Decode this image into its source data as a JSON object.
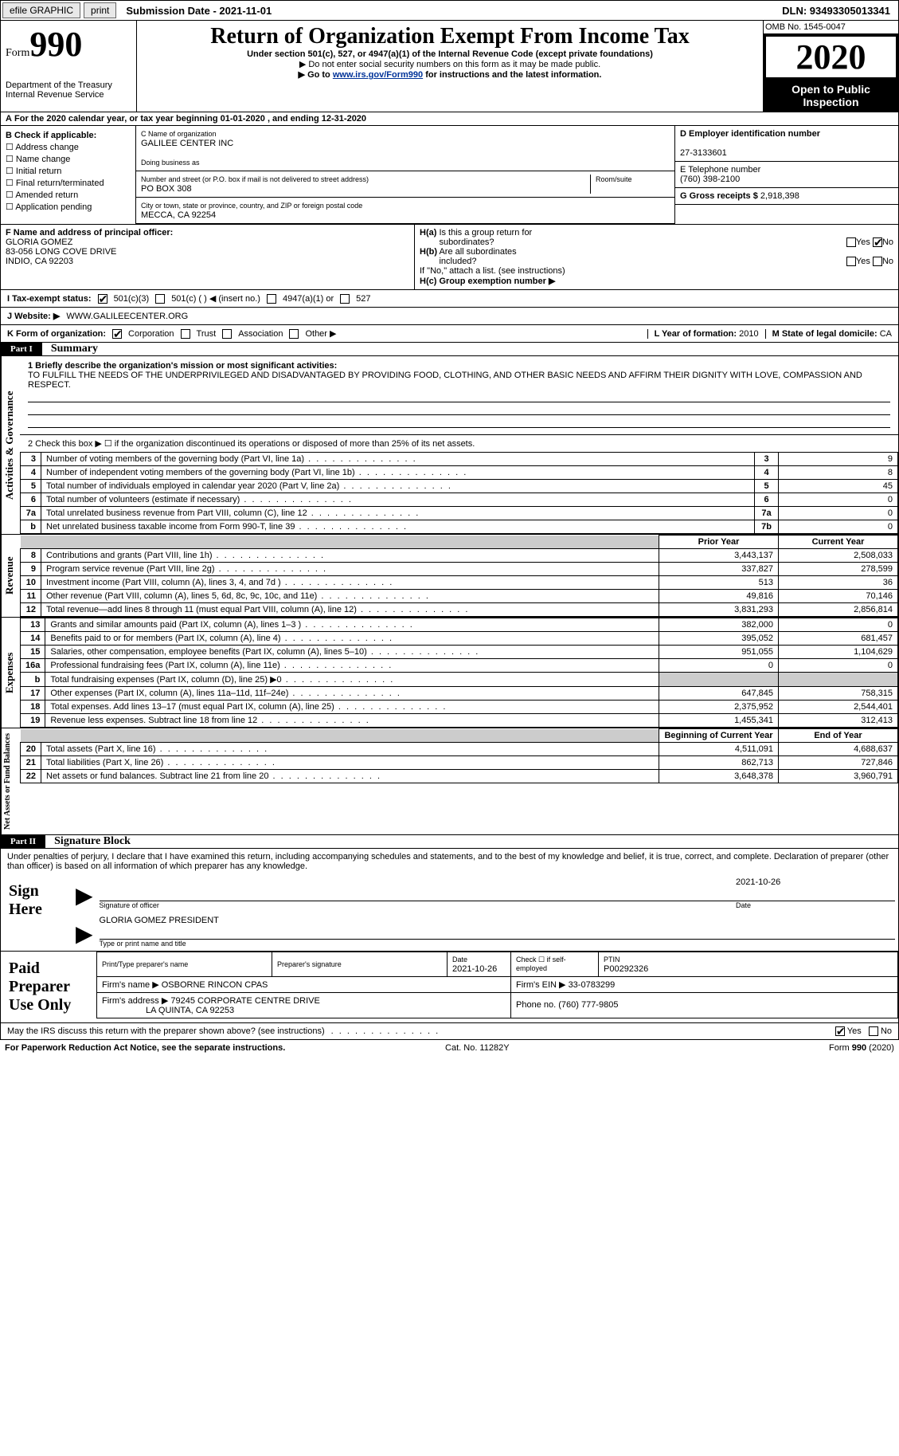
{
  "topbar": {
    "efile": "efile GRAPHIC",
    "print": "print",
    "submission": "Submission Date - 2021-11-01",
    "dln": "DLN: 93493305013341"
  },
  "header": {
    "form_prefix": "Form",
    "form_number": "990",
    "dept": "Department of the Treasury\nInternal Revenue Service",
    "title": "Return of Organization Exempt From Income Tax",
    "subtitle": "Under section 501(c), 527, or 4947(a)(1) of the Internal Revenue Code (except private foundations)",
    "note1": "▶ Do not enter social security numbers on this form as it may be made public.",
    "note2_pre": "▶ Go to ",
    "note2_link": "www.irs.gov/Form990",
    "note2_post": " for instructions and the latest information.",
    "omb": "OMB No. 1545-0047",
    "year": "2020",
    "inspection": "Open to Public Inspection"
  },
  "period": "For the 2020 calendar year, or tax year beginning 01-01-2020   , and ending 12-31-2020",
  "b": {
    "label": "B Check if applicable:",
    "items": [
      "Address change",
      "Name change",
      "Initial return",
      "Final return/terminated",
      "Amended return",
      "Application pending"
    ]
  },
  "c": {
    "name_label": "C Name of organization",
    "name": "GALILEE CENTER INC",
    "dba_label": "Doing business as",
    "addr_label": "Number and street (or P.O. box if mail is not delivered to street address)",
    "room_label": "Room/suite",
    "addr": "PO BOX 308",
    "city_label": "City or town, state or province, country, and ZIP or foreign postal code",
    "city": "MECCA, CA  92254"
  },
  "d": {
    "label": "D Employer identification number",
    "value": "27-3133601"
  },
  "e": {
    "label": "E Telephone number",
    "value": "(760) 398-2100"
  },
  "g": {
    "label": "G Gross receipts $",
    "value": "2,918,398"
  },
  "f": {
    "label": "F  Name and address of principal officer:",
    "name": "GLORIA GOMEZ",
    "addr1": "83-056 LONG COVE DRIVE",
    "addr2": "INDIO, CA  92203"
  },
  "h": {
    "a_label": "H(a)  Is this a group return for subordinates?",
    "a_yes": "Yes",
    "a_no": "No",
    "b_label": "H(b)  Are all subordinates included?",
    "b_note": "If \"No,\" attach a list. (see instructions)",
    "c_label": "H(c)  Group exemption number ▶"
  },
  "i": {
    "label": "I   Tax-exempt status:",
    "opts": [
      "501(c)(3)",
      "501(c) (  ) ◀ (insert no.)",
      "4947(a)(1) or",
      "527"
    ]
  },
  "j": {
    "label": "J   Website: ▶",
    "value": "WWW.GALILEECENTER.ORG"
  },
  "k": {
    "label": "K Form of organization:",
    "opts": [
      "Corporation",
      "Trust",
      "Association",
      "Other ▶"
    ]
  },
  "l": {
    "label": "L Year of formation:",
    "value": "2010"
  },
  "m": {
    "label": "M State of legal domicile:",
    "value": "CA"
  },
  "part1": {
    "label": "Part I",
    "title": "Summary"
  },
  "mission": {
    "prompt": "1  Briefly describe the organization's mission or most significant activities:",
    "text": "TO FULFILL THE NEEDS OF THE UNDERPRIVILEGED AND DISADVANTAGED BY PROVIDING FOOD, CLOTHING, AND OTHER BASIC NEEDS AND AFFIRM THEIR DIGNITY WITH LOVE, COMPASSION AND RESPECT."
  },
  "line2": "2   Check this box ▶ ☐  if the organization discontinued its operations or disposed of more than 25% of its net assets.",
  "governance_rows": [
    {
      "n": "3",
      "lbl": "Number of voting members of the governing body (Part VI, line 1a)",
      "box": "3",
      "val": "9"
    },
    {
      "n": "4",
      "lbl": "Number of independent voting members of the governing body (Part VI, line 1b)",
      "box": "4",
      "val": "8"
    },
    {
      "n": "5",
      "lbl": "Total number of individuals employed in calendar year 2020 (Part V, line 2a)",
      "box": "5",
      "val": "45"
    },
    {
      "n": "6",
      "lbl": "Total number of volunteers (estimate if necessary)",
      "box": "6",
      "val": "0"
    },
    {
      "n": "7a",
      "lbl": "Total unrelated business revenue from Part VIII, column (C), line 12",
      "box": "7a",
      "val": "0"
    },
    {
      "n": "b",
      "lbl": "Net unrelated business taxable income from Form 990-T, line 39",
      "box": "7b",
      "val": "0"
    }
  ],
  "col_headers": {
    "py": "Prior Year",
    "cy": "Current Year"
  },
  "revenue_rows": [
    {
      "n": "8",
      "lbl": "Contributions and grants (Part VIII, line 1h)",
      "py": "3,443,137",
      "cy": "2,508,033"
    },
    {
      "n": "9",
      "lbl": "Program service revenue (Part VIII, line 2g)",
      "py": "337,827",
      "cy": "278,599"
    },
    {
      "n": "10",
      "lbl": "Investment income (Part VIII, column (A), lines 3, 4, and 7d )",
      "py": "513",
      "cy": "36"
    },
    {
      "n": "11",
      "lbl": "Other revenue (Part VIII, column (A), lines 5, 6d, 8c, 9c, 10c, and 11e)",
      "py": "49,816",
      "cy": "70,146"
    },
    {
      "n": "12",
      "lbl": "Total revenue—add lines 8 through 11 (must equal Part VIII, column (A), line 12)",
      "py": "3,831,293",
      "cy": "2,856,814"
    }
  ],
  "expense_rows": [
    {
      "n": "13",
      "lbl": "Grants and similar amounts paid (Part IX, column (A), lines 1–3 )",
      "py": "382,000",
      "cy": "0"
    },
    {
      "n": "14",
      "lbl": "Benefits paid to or for members (Part IX, column (A), line 4)",
      "py": "395,052",
      "cy": "681,457"
    },
    {
      "n": "15",
      "lbl": "Salaries, other compensation, employee benefits (Part IX, column (A), lines 5–10)",
      "py": "951,055",
      "cy": "1,104,629"
    },
    {
      "n": "16a",
      "lbl": "Professional fundraising fees (Part IX, column (A), line 11e)",
      "py": "0",
      "cy": "0"
    },
    {
      "n": "b",
      "lbl": "Total fundraising expenses (Part IX, column (D), line 25) ▶0",
      "py": "",
      "cy": "",
      "shaded": true
    },
    {
      "n": "17",
      "lbl": "Other expenses (Part IX, column (A), lines 11a–11d, 11f–24e)",
      "py": "647,845",
      "cy": "758,315"
    },
    {
      "n": "18",
      "lbl": "Total expenses. Add lines 13–17 (must equal Part IX, column (A), line 25)",
      "py": "2,375,952",
      "cy": "2,544,401"
    },
    {
      "n": "19",
      "lbl": "Revenue less expenses. Subtract line 18 from line 12",
      "py": "1,455,341",
      "cy": "312,413"
    }
  ],
  "net_headers": {
    "py": "Beginning of Current Year",
    "cy": "End of Year"
  },
  "net_rows": [
    {
      "n": "20",
      "lbl": "Total assets (Part X, line 16)",
      "py": "4,511,091",
      "cy": "4,688,637"
    },
    {
      "n": "21",
      "lbl": "Total liabilities (Part X, line 26)",
      "py": "862,713",
      "cy": "727,846"
    },
    {
      "n": "22",
      "lbl": "Net assets or fund balances. Subtract line 21 from line 20",
      "py": "3,648,378",
      "cy": "3,960,791"
    }
  ],
  "side_labels": {
    "gov": "Activities & Governance",
    "rev": "Revenue",
    "exp": "Expenses",
    "net": "Net Assets or Fund Balances"
  },
  "part2": {
    "label": "Part II",
    "title": "Signature Block"
  },
  "penalties": "Under penalties of perjury, I declare that I have examined this return, including accompanying schedules and statements, and to the best of my knowledge and belief, it is true, correct, and complete. Declaration of preparer (other than officer) is based on all information of which preparer has any knowledge.",
  "sign": {
    "here": "Sign Here",
    "sig_label": "Signature of officer",
    "date": "2021-10-26",
    "date_label": "Date",
    "name": "GLORIA GOMEZ PRESIDENT",
    "name_label": "Type or print name and title"
  },
  "prep": {
    "label": "Paid Preparer Use Only",
    "col1": "Print/Type preparer's name",
    "col2": "Preparer's signature",
    "col3": "Date",
    "date": "2021-10-26",
    "col4_a": "Check ☐ if self-employed",
    "col5": "PTIN",
    "ptin": "P00292326",
    "firm_name_lbl": "Firm's name   ▶",
    "firm_name": "OSBORNE RINCON CPAS",
    "firm_ein_lbl": "Firm's EIN ▶",
    "firm_ein": "33-0783299",
    "firm_addr_lbl": "Firm's address ▶",
    "firm_addr": "79245 CORPORATE CENTRE DRIVE",
    "firm_city": "LA QUINTA, CA  92253",
    "phone_lbl": "Phone no.",
    "phone": "(760) 777-9805"
  },
  "discuss": {
    "q": "May the IRS discuss this return with the preparer shown above? (see instructions)",
    "yes": "Yes",
    "no": "No"
  },
  "footer": {
    "left": "For Paperwork Reduction Act Notice, see the separate instructions.",
    "mid": "Cat. No. 11282Y",
    "right": "Form 990 (2020)"
  }
}
